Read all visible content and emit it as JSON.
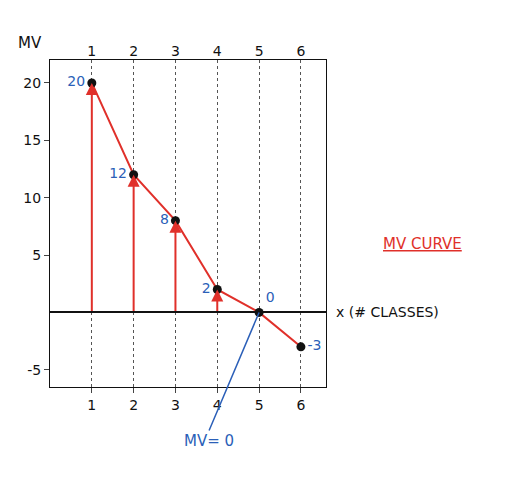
{
  "chart_data": {
    "type": "line",
    "x": [
      1,
      2,
      3,
      4,
      5,
      6
    ],
    "values": [
      20,
      12,
      8,
      2,
      0,
      -3
    ],
    "color": "#e0302a",
    "marker": "circle",
    "line_style": "solid",
    "data_labels": true,
    "xlim": [
      0,
      6.6
    ],
    "ylim": [
      -6.5,
      22
    ],
    "xticks": [
      1,
      2,
      3,
      4,
      5,
      6
    ],
    "yticks": [
      -5,
      5,
      10,
      15,
      20
    ],
    "grid": "x",
    "x_label": "x (# CLASSES)",
    "y_label": "MV",
    "annotations": [
      {
        "text": "MV CURVE"
      },
      {
        "text": "MV= 0",
        "x": 5,
        "y": 0
      }
    ]
  }
}
